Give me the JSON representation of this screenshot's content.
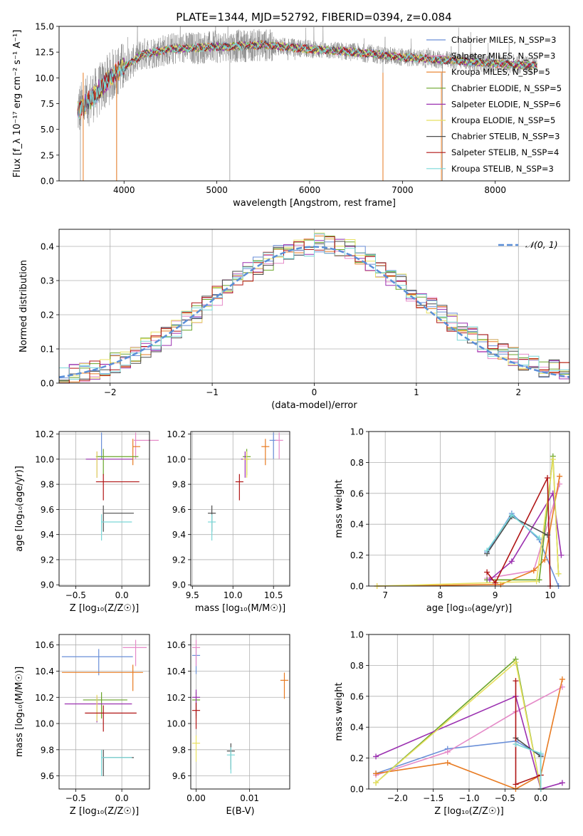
{
  "figure": {
    "title": "PLATE=1344, MJD=52792, FIBERID=0394, z=0.084"
  },
  "chart_data": [
    {
      "id": "spectrum",
      "type": "line",
      "xlabel": "wavelength [Angstrom, rest frame]",
      "ylabel": "Flux [f_λ 10⁻¹⁷ erg cm⁻² s⁻¹ A⁻¹]",
      "xlim": [
        3300,
        8800
      ],
      "ylim": [
        0,
        15
      ],
      "xticks": [
        4000,
        5000,
        6000,
        7000,
        8000
      ],
      "yticks": [
        0.0,
        2.5,
        5.0,
        7.5,
        10.0,
        12.5,
        15.0
      ],
      "legend_position": "right",
      "series": [
        {
          "name": "Chabrier MILES, N_SSP=3",
          "color": "#6a8fd8"
        },
        {
          "name": "Salpeter MILES, N_SSP=3",
          "color": "#e58ac8"
        },
        {
          "name": "Kroupa MILES, N_SSP=5",
          "color": "#e87b22"
        },
        {
          "name": "Chabrier ELODIE, N_SSP=5",
          "color": "#6aa52a"
        },
        {
          "name": "Salpeter ELODIE, N_SSP=6",
          "color": "#9b30b0"
        },
        {
          "name": "Kroupa ELODIE, N_SSP=5",
          "color": "#e8e060"
        },
        {
          "name": "Chabrier STELIB, N_SSP=3",
          "color": "#4d4d4d"
        },
        {
          "name": "Salpeter STELIB, N_SSP=4",
          "color": "#b01515"
        },
        {
          "name": "Kroupa STELIB, N_SSP=3",
          "color": "#7ad8d8"
        }
      ],
      "data_color": "#888888",
      "model_shape": {
        "x": [
          3500,
          3700,
          3900,
          4000,
          4200,
          4500,
          5000,
          5500,
          6000,
          6500,
          7000,
          7500,
          8000,
          8400
        ],
        "y": [
          6.8,
          8.5,
          10.5,
          11.0,
          12.3,
          12.8,
          13.0,
          13.2,
          12.8,
          12.5,
          12.0,
          11.7,
          11.4,
          11.2
        ]
      }
    },
    {
      "id": "residuals",
      "type": "bar",
      "xlabel": "(data-model)/error",
      "ylabel": "Normed distribution",
      "xlim": [
        -2.5,
        2.5
      ],
      "ylim": [
        0,
        0.45
      ],
      "xticks": [
        -2,
        -1,
        0,
        1,
        2
      ],
      "yticks": [
        0.0,
        0.1,
        0.2,
        0.3,
        0.4
      ],
      "legend": "𝒩(0, 1)",
      "legend_position": "top-right",
      "normal_color": "#5b8fd8"
    },
    {
      "id": "age_vs_Z",
      "type": "scatter",
      "xlabel": "Z [log₁₀(Z/Z☉)]",
      "ylabel": "age  [log₁₀(age/yr)]",
      "xlim": [
        -0.68,
        0.3
      ],
      "ylim": [
        8.99,
        10.22
      ],
      "xticks": [
        -0.5,
        0.0
      ],
      "yticks": [
        9.0,
        9.2,
        9.4,
        9.6,
        9.8,
        10.0,
        10.2
      ],
      "points": [
        {
          "x": -0.22,
          "y": 10.15,
          "xl": 0.0,
          "xh": 0.0,
          "color": "#6a8fd8"
        },
        {
          "x": 0.15,
          "y": 10.15,
          "xl": 0.02,
          "xh": 0.25,
          "color": "#e58ac8"
        },
        {
          "x": 0.12,
          "y": 10.1,
          "xl": 0.0,
          "xh": 0.08,
          "color": "#e87b22"
        },
        {
          "x": -0.2,
          "y": 10.02,
          "xl": 0.08,
          "xh": 0.38,
          "color": "#6aa52a"
        },
        {
          "x": -0.27,
          "y": 10.0,
          "xl": 0.12,
          "xh": 0.39,
          "color": "#9b30b0"
        },
        {
          "x": -0.27,
          "y": 10.0,
          "xl": 0.0,
          "xh": 0.0,
          "color": "#e8e060"
        },
        {
          "x": -0.2,
          "y": 9.57,
          "xl": 0.0,
          "xh": 0.33,
          "color": "#4d4d4d"
        },
        {
          "x": -0.2,
          "y": 9.82,
          "xl": 0.08,
          "xh": 0.39,
          "color": "#b01515"
        },
        {
          "x": -0.22,
          "y": 9.5,
          "xl": 0.0,
          "xh": 0.33,
          "color": "#7ad8d8"
        }
      ]
    },
    {
      "id": "age_vs_mass",
      "type": "scatter",
      "xlabel": "mass [log₁₀(M/M☉)]",
      "xlim": [
        9.48,
        10.7
      ],
      "ylim": [
        8.99,
        10.22
      ],
      "xticks": [
        9.5,
        10.0,
        10.5
      ],
      "yticks": [
        9.0,
        9.2,
        9.4,
        9.6,
        9.8,
        10.0,
        10.2
      ],
      "points": [
        {
          "x": 10.5,
          "y": 10.15,
          "color": "#6a8fd8"
        },
        {
          "x": 10.57,
          "y": 10.15,
          "color": "#e58ac8"
        },
        {
          "x": 10.4,
          "y": 10.1,
          "color": "#e87b22"
        },
        {
          "x": 10.17,
          "y": 10.02,
          "color": "#6aa52a"
        },
        {
          "x": 10.15,
          "y": 10.0,
          "color": "#9b30b0"
        },
        {
          "x": 10.17,
          "y": 10.0,
          "color": "#e8e060"
        },
        {
          "x": 9.74,
          "y": 9.57,
          "color": "#4d4d4d"
        },
        {
          "x": 10.08,
          "y": 9.82,
          "color": "#b01515"
        },
        {
          "x": 9.74,
          "y": 9.5,
          "color": "#7ad8d8"
        }
      ]
    },
    {
      "id": "weight_vs_age",
      "type": "line",
      "xlabel": "age  [log₁₀(age/yr)]",
      "ylabel": "mass weight",
      "xlim": [
        6.7,
        10.35
      ],
      "ylim": [
        0,
        1.0
      ],
      "xticks": [
        7,
        8,
        9,
        10
      ],
      "yticks": [
        0.0,
        0.2,
        0.4,
        0.6,
        0.8,
        1.0
      ],
      "series": [
        {
          "color": "#6a8fd8",
          "points": [
            [
              8.85,
              0.22
            ],
            [
              9.3,
              0.47
            ],
            [
              9.8,
              0.3
            ],
            [
              10.15,
              0.0
            ]
          ]
        },
        {
          "color": "#e58ac8",
          "points": [
            [
              8.85,
              0.05
            ],
            [
              9.7,
              0.1
            ],
            [
              10.17,
              0.66
            ]
          ]
        },
        {
          "color": "#e87b22",
          "points": [
            [
              6.85,
              0.0
            ],
            [
              9.1,
              0.01
            ],
            [
              9.7,
              0.1
            ],
            [
              9.9,
              0.17
            ],
            [
              10.17,
              0.71
            ]
          ]
        },
        {
          "color": "#6aa52a",
          "points": [
            [
              8.85,
              0.04
            ],
            [
              9.8,
              0.04
            ],
            [
              10.05,
              0.84
            ],
            [
              10.15,
              0.08
            ]
          ]
        },
        {
          "color": "#9b30b0",
          "points": [
            [
              8.9,
              0.04
            ],
            [
              9.3,
              0.16
            ],
            [
              10.05,
              0.6
            ],
            [
              10.2,
              0.2
            ]
          ]
        },
        {
          "color": "#e8e060",
          "points": [
            [
              6.85,
              0.0
            ],
            [
              9.75,
              0.03
            ],
            [
              10.05,
              0.82
            ],
            [
              10.15,
              0.08
            ]
          ]
        },
        {
          "color": "#4d4d4d",
          "points": [
            [
              8.85,
              0.21
            ],
            [
              9.3,
              0.45
            ],
            [
              9.95,
              0.33
            ]
          ]
        },
        {
          "color": "#b01515",
          "points": [
            [
              8.85,
              0.09
            ],
            [
              9.0,
              0.02
            ],
            [
              9.95,
              0.7
            ],
            [
              10.0,
              0.0
            ]
          ]
        },
        {
          "color": "#7ad8d8",
          "points": [
            [
              8.85,
              0.23
            ],
            [
              9.3,
              0.46
            ],
            [
              9.8,
              0.31
            ]
          ]
        }
      ]
    },
    {
      "id": "mass_vs_Z",
      "type": "scatter",
      "xlabel": "Z [log₁₀(Z/Z☉)]",
      "ylabel": "mass [log₁₀(M/M☉)]",
      "xlim": [
        -0.68,
        0.3
      ],
      "ylim": [
        9.5,
        10.68
      ],
      "xticks": [
        -0.5,
        0.0
      ],
      "yticks": [
        9.6,
        9.8,
        10.0,
        10.2,
        10.4,
        10.6
      ],
      "points": [
        {
          "x": -0.25,
          "y": 10.51,
          "xl": 0.4,
          "xh": 0.37,
          "color": "#6a8fd8"
        },
        {
          "x": 0.15,
          "y": 10.58,
          "xl": 0.14,
          "xh": 0.12,
          "color": "#e58ac8"
        },
        {
          "x": 0.12,
          "y": 10.39,
          "xl": 0.77,
          "xh": 0.11,
          "color": "#e87b22"
        },
        {
          "x": -0.22,
          "y": 10.18,
          "xl": 0.2,
          "xh": 0.28,
          "color": "#6aa52a"
        },
        {
          "x": -0.27,
          "y": 10.15,
          "xl": 0.35,
          "xh": 0.38,
          "color": "#9b30b0"
        },
        {
          "x": -0.27,
          "y": 10.16,
          "xl": 0.0,
          "xh": 0.0,
          "color": "#e8e060"
        },
        {
          "x": -0.2,
          "y": 9.74,
          "xl": 0.0,
          "xh": 0.33,
          "color": "#4d4d4d"
        },
        {
          "x": -0.2,
          "y": 10.08,
          "xl": 0.2,
          "xh": 0.36,
          "color": "#b01515"
        },
        {
          "x": -0.22,
          "y": 9.74,
          "xl": 0.0,
          "xh": 0.33,
          "color": "#7ad8d8"
        }
      ]
    },
    {
      "id": "mass_vs_ebv",
      "type": "scatter",
      "xlabel": "E(B-V)",
      "xlim": [
        -0.001,
        0.0175
      ],
      "ylim": [
        9.5,
        10.68
      ],
      "xticks": [
        0.0,
        0.01
      ],
      "yticks": [
        9.6,
        9.8,
        10.0,
        10.2,
        10.4,
        10.6
      ],
      "points": [
        {
          "x": 0.0,
          "y": 10.52,
          "color": "#6a8fd8"
        },
        {
          "x": 0.0,
          "y": 10.58,
          "color": "#e58ac8"
        },
        {
          "x": 0.0165,
          "y": 10.33,
          "color": "#e87b22"
        },
        {
          "x": 0.0,
          "y": 10.18,
          "color": "#6aa52a"
        },
        {
          "x": 0.0,
          "y": 10.2,
          "color": "#9b30b0"
        },
        {
          "x": 0.0,
          "y": 9.85,
          "color": "#e8e060"
        },
        {
          "x": 0.0065,
          "y": 9.79,
          "color": "#4d4d4d"
        },
        {
          "x": 0.0,
          "y": 10.1,
          "color": "#b01515"
        },
        {
          "x": 0.0065,
          "y": 9.76,
          "color": "#7ad8d8"
        }
      ]
    },
    {
      "id": "weight_vs_Z",
      "type": "line",
      "xlabel": "Z [log₁₀(Z/Z☉)]",
      "ylabel": "mass weight",
      "xlim": [
        -2.4,
        0.4
      ],
      "ylim": [
        0,
        1.0
      ],
      "xticks": [
        -2.0,
        -1.5,
        -1.0,
        -0.5,
        0.0
      ],
      "yticks": [
        0.0,
        0.2,
        0.4,
        0.6,
        0.8,
        1.0
      ],
      "series": [
        {
          "color": "#6a8fd8",
          "points": [
            [
              -2.3,
              0.1
            ],
            [
              -1.3,
              0.26
            ],
            [
              -0.35,
              0.31
            ],
            [
              0.0,
              0.22
            ],
            [
              0.0,
              0.0
            ]
          ]
        },
        {
          "color": "#e58ac8",
          "points": [
            [
              -2.3,
              0.09
            ],
            [
              -1.3,
              0.24
            ],
            [
              -0.35,
              0.5
            ],
            [
              0.3,
              0.66
            ]
          ]
        },
        {
          "color": "#e87b22",
          "points": [
            [
              -2.3,
              0.1
            ],
            [
              -1.3,
              0.17
            ],
            [
              -0.35,
              0.0
            ],
            [
              0.0,
              0.09
            ],
            [
              0.3,
              0.71
            ]
          ]
        },
        {
          "color": "#6aa52a",
          "points": [
            [
              -2.3,
              0.04
            ],
            [
              -0.35,
              0.84
            ],
            [
              0.0,
              0.0
            ]
          ]
        },
        {
          "color": "#9b30b0",
          "points": [
            [
              -2.3,
              0.21
            ],
            [
              -0.35,
              0.6
            ],
            [
              0.0,
              0.0
            ],
            [
              0.3,
              0.04
            ]
          ]
        },
        {
          "color": "#e8e060",
          "points": [
            [
              -2.3,
              0.04
            ],
            [
              -0.35,
              0.82
            ],
            [
              0.0,
              0.0
            ]
          ]
        },
        {
          "color": "#4d4d4d",
          "points": [
            [
              -0.35,
              0.33
            ],
            [
              0.0,
              0.21
            ],
            [
              0.0,
              0.0
            ]
          ]
        },
        {
          "color": "#b01515",
          "points": [
            [
              -0.35,
              0.7
            ],
            [
              -0.35,
              0.03
            ],
            [
              0.0,
              0.09
            ],
            [
              0.0,
              0.0
            ]
          ]
        },
        {
          "color": "#7ad8d8",
          "points": [
            [
              -0.35,
              0.29
            ],
            [
              0.0,
              0.23
            ],
            [
              0.0,
              0.0
            ]
          ]
        }
      ]
    }
  ]
}
